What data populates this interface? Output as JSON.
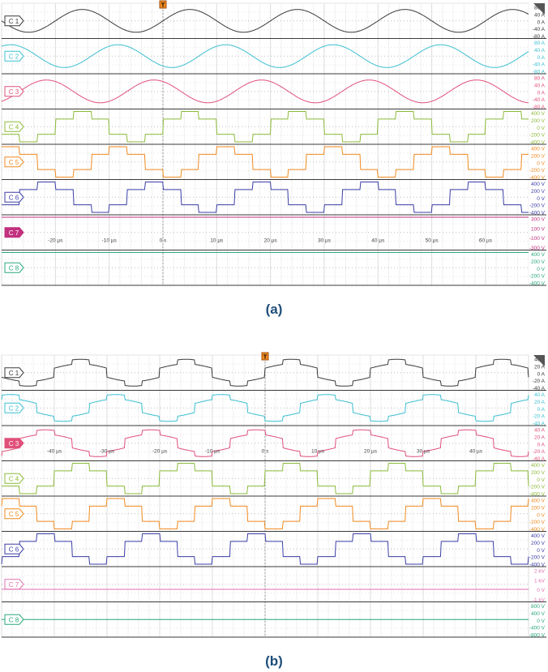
{
  "figure": {
    "panels": [
      {
        "id": "a",
        "caption": "(a)"
      },
      {
        "id": "b",
        "caption": "(b)"
      }
    ]
  },
  "chart_data": [
    {
      "panel": "a",
      "type": "line",
      "title": "",
      "trigger_marker": "T",
      "time_axis": {
        "unit": "µs",
        "ticks": [
          -20,
          -10,
          0,
          10,
          20,
          30,
          40,
          50,
          60
        ],
        "tick_labels": [
          "-20 µs",
          "-10 µs",
          "0 s",
          "10 µs",
          "20 µs",
          "30 µs",
          "40 µs",
          "50 µs",
          "60 µs"
        ],
        "range": [
          -30,
          68
        ]
      },
      "grid": true,
      "channels": [
        {
          "name": "C 1",
          "color": "#3a3a3a",
          "shape": "sine",
          "amplitude": 60,
          "period_us": 20,
          "phase_deg": 0,
          "scale_labels": [
            "80 A",
            "40 A",
            "0 A",
            "-40 A",
            "-80 A"
          ],
          "range": [
            -80,
            80
          ]
        },
        {
          "name": "C 2",
          "color": "#3cbfd0",
          "shape": "sine",
          "amplitude": 60,
          "period_us": 20,
          "phase_deg": -120,
          "scale_labels": [
            "80 A",
            "40 A",
            "0 A",
            "-40 A",
            "-80 A"
          ],
          "range": [
            -80,
            80
          ]
        },
        {
          "name": "C 3",
          "color": "#e0507a",
          "shape": "sine",
          "amplitude": 60,
          "period_us": 20,
          "phase_deg": 120,
          "scale_labels": [
            "80 A",
            "40 A",
            "0 A",
            "-40 A",
            "-80 A"
          ],
          "range": [
            -80,
            80
          ]
        },
        {
          "name": "C 4",
          "color": "#8cbb3a",
          "shape": "sixstep",
          "amplitude": 400,
          "period_us": 20,
          "phase_deg": 0,
          "scale_labels": [
            "400 V",
            "200 V",
            "0 V",
            "-200 V",
            "-400 V"
          ],
          "range": [
            -400,
            400
          ]
        },
        {
          "name": "C 5",
          "color": "#f08a20",
          "shape": "sixstep",
          "amplitude": 400,
          "period_us": 20,
          "phase_deg": -120,
          "scale_labels": [
            "400 V",
            "200 V",
            "0 V",
            "-200 V",
            "-400 V"
          ],
          "range": [
            -400,
            400
          ]
        },
        {
          "name": "C 6",
          "color": "#3b3ea6",
          "shape": "sixstep",
          "amplitude": 400,
          "period_us": 20,
          "phase_deg": 120,
          "scale_labels": [
            "400 V",
            "200 V",
            "0 V",
            "-200 V",
            "-400 V"
          ],
          "range": [
            -400,
            400
          ]
        },
        {
          "name": "C 7",
          "color": "#c2307e",
          "shape": "flat",
          "level": 300,
          "highlighted": true,
          "scale_labels": [
            "300 V",
            "100 V",
            "-100 V",
            "-300 V"
          ],
          "range": [
            -300,
            300
          ]
        },
        {
          "name": "C 8",
          "color": "#2aa87a",
          "shape": "flat",
          "level": 400,
          "scale_labels": [
            "400 V",
            "200 V",
            "0 V",
            "-200 V",
            "-400 V"
          ],
          "range": [
            -400,
            400
          ]
        }
      ]
    },
    {
      "panel": "b",
      "type": "line",
      "title": "",
      "trigger_marker": "T",
      "time_axis": {
        "unit": "µs",
        "ticks": [
          -40,
          -30,
          -20,
          -10,
          0,
          10,
          20,
          30,
          40
        ],
        "tick_labels": [
          "-40 µs",
          "-30 µs",
          "-20 µs",
          "-10 µs",
          "0 s",
          "10 µs",
          "20 µs",
          "30 µs",
          "40 µs"
        ],
        "range": [
          -50,
          50
        ]
      },
      "grid": true,
      "channels": [
        {
          "name": "C 1",
          "color": "#3a3a3a",
          "shape": "stepsine",
          "amplitude": 32,
          "period_us": 20,
          "phase_deg": 0,
          "scale_labels": [
            "40 A",
            "20 A",
            "0 A",
            "-20 A",
            "-40 A"
          ],
          "range": [
            -40,
            40
          ]
        },
        {
          "name": "C 2",
          "color": "#3cbfd0",
          "shape": "stepsine",
          "amplitude": 32,
          "period_us": 20,
          "phase_deg": -120,
          "scale_labels": [
            "40 A",
            "20 A",
            "0 A",
            "-20 A",
            "-40 A"
          ],
          "range": [
            -40,
            40
          ]
        },
        {
          "name": "C 3",
          "color": "#e0507a",
          "shape": "stepsine",
          "amplitude": 32,
          "period_us": 20,
          "phase_deg": 120,
          "highlighted": true,
          "scale_labels": [
            "40 A",
            "20 A",
            "0 A",
            "-20 A",
            "-40 A"
          ],
          "range": [
            -40,
            40
          ]
        },
        {
          "name": "C 4",
          "color": "#8cbb3a",
          "shape": "sixstep",
          "amplitude": 400,
          "period_us": 20,
          "phase_deg": 0,
          "scale_labels": [
            "400 V",
            "200 V",
            "0 V",
            "-200 V",
            "-400 V"
          ],
          "range": [
            -400,
            400
          ]
        },
        {
          "name": "C 5",
          "color": "#f08a20",
          "shape": "sixstep",
          "amplitude": 400,
          "period_us": 20,
          "phase_deg": -120,
          "scale_labels": [
            "400 V",
            "200 V",
            "0 V",
            "-200 V",
            "-400 V"
          ],
          "range": [
            -400,
            400
          ]
        },
        {
          "name": "C 6",
          "color": "#3b3ea6",
          "shape": "sixstep",
          "amplitude": 400,
          "period_us": 20,
          "phase_deg": 120,
          "scale_labels": [
            "400 V",
            "200 V",
            "0 V",
            "-200 V",
            "-400 V"
          ],
          "range": [
            -400,
            400
          ]
        },
        {
          "name": "C 7",
          "color": "#e070b0",
          "shape": "flat",
          "level": 0,
          "scale_labels": [
            "2 kV",
            "1 kV",
            "0 V",
            "-1 kV"
          ],
          "range": [
            -1000,
            2000
          ]
        },
        {
          "name": "C 8",
          "color": "#2aa87a",
          "shape": "flat",
          "level": 0,
          "scale_labels": [
            "800 V",
            "400 V",
            "0 V",
            "-400 V",
            "-800 V"
          ],
          "range": [
            -800,
            800
          ]
        }
      ]
    }
  ]
}
